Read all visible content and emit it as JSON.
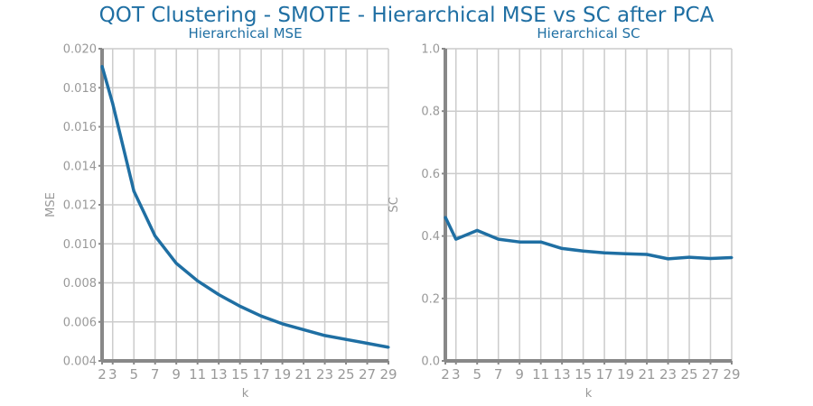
{
  "title": "QOT Clustering - SMOTE - Hierarchical MSE vs SC after PCA",
  "colors": {
    "line": "#1f6fa3",
    "title": "#1f6fa3",
    "axis": "#888888",
    "grid": "#cccccc",
    "tick_label": "#999999"
  },
  "chart_data": [
    {
      "type": "line",
      "title": "Hierarchical MSE",
      "xlabel": "k",
      "ylabel": "MSE",
      "grid": true,
      "x": [
        2,
        3,
        5,
        7,
        9,
        11,
        13,
        15,
        17,
        19,
        21,
        23,
        25,
        27,
        29
      ],
      "xticks": [
        "2",
        "3",
        "5",
        "7",
        "9",
        "11",
        "13",
        "15",
        "17",
        "19",
        "21",
        "23",
        "25",
        "27",
        "29"
      ],
      "xlim": [
        2,
        29
      ],
      "ylim": [
        0.004,
        0.02
      ],
      "yticks": [
        "0.020",
        "0.018",
        "0.016",
        "0.014",
        "0.012",
        "0.010",
        "0.008",
        "0.006",
        "0.004"
      ],
      "series": [
        {
          "values": [
            0.0191,
            0.0172,
            0.0127,
            0.0104,
            0.009,
            0.0081,
            0.0074,
            0.0068,
            0.0063,
            0.0059,
            0.0056,
            0.0053,
            0.0051,
            0.0049,
            0.0047
          ]
        }
      ]
    },
    {
      "type": "line",
      "title": "Hierarchical SC",
      "xlabel": "k",
      "ylabel": "SC",
      "grid": true,
      "x": [
        2,
        3,
        5,
        7,
        9,
        11,
        13,
        15,
        17,
        19,
        21,
        23,
        25,
        27,
        29
      ],
      "xticks": [
        "2",
        "3",
        "5",
        "7",
        "9",
        "11",
        "13",
        "15",
        "17",
        "19",
        "21",
        "23",
        "25",
        "27",
        "29"
      ],
      "xlim": [
        2,
        29
      ],
      "ylim": [
        0.0,
        1.0
      ],
      "yticks": [
        "1.0",
        "0.8",
        "0.6",
        "0.4",
        "0.2",
        "0.0"
      ],
      "series": [
        {
          "values": [
            0.46,
            0.39,
            0.418,
            0.39,
            0.381,
            0.381,
            0.36,
            0.352,
            0.346,
            0.343,
            0.341,
            0.327,
            0.332,
            0.328,
            0.331
          ]
        }
      ]
    }
  ]
}
